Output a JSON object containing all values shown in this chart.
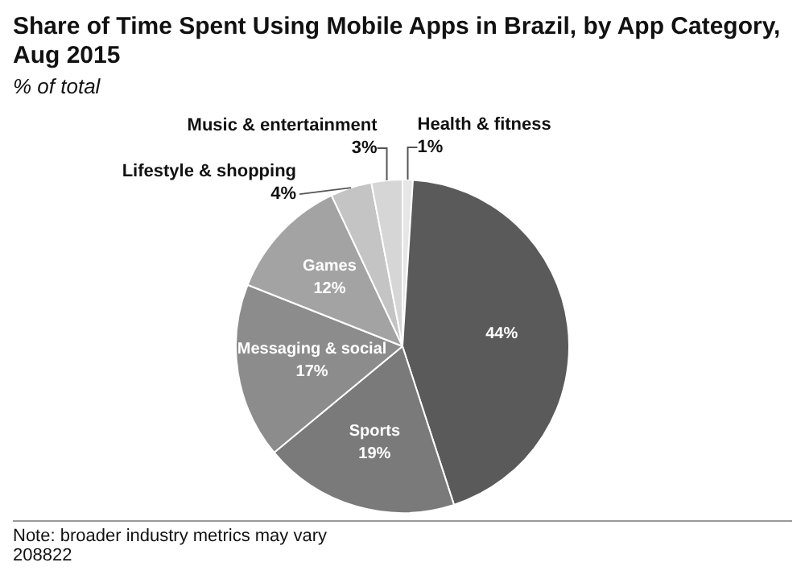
{
  "chart_data": {
    "type": "pie",
    "title": "Share of Time Spent Using Mobile Apps in Brazil, by App Category, Aug 2015",
    "subtitle": "% of total",
    "categories": [
      "Health & fitness",
      null,
      "Sports",
      "Messaging & social",
      "Games",
      "Lifestyle & shopping",
      "Music & entertainment"
    ],
    "values": [
      1,
      44,
      19,
      17,
      12,
      4,
      3
    ],
    "value_labels": [
      "1%",
      "44%",
      "19%",
      "17%",
      "12%",
      "4%",
      "3%"
    ],
    "colors": [
      "#e6e6e6",
      "#5a5a5a",
      "#7a7a7a",
      "#8c8c8c",
      "#a3a3a3",
      "#c4c4c4",
      "#d6d6d6"
    ],
    "legend": false,
    "annotations": [
      "Note: broader industry metrics may vary",
      "208822"
    ]
  }
}
